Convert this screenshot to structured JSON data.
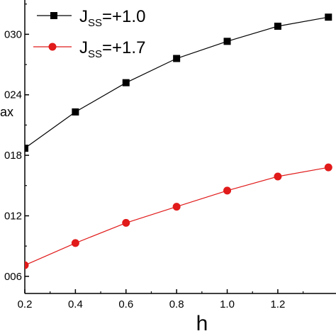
{
  "chart_data": {
    "type": "line",
    "xlabel": "h",
    "ylabel_visible": "ax",
    "x": [
      0.2,
      0.4,
      0.6,
      0.8,
      1.0,
      1.2,
      1.4
    ],
    "x_ticks": [
      "0.2",
      "0.4",
      "0.6",
      "0.8",
      "1.0",
      "1.2"
    ],
    "y_ticks": [
      {
        "value": 0.006,
        "label": "006"
      },
      {
        "value": 0.012,
        "label": "012"
      },
      {
        "value": 0.018,
        "label": "018"
      },
      {
        "value": 0.024,
        "label": "024"
      },
      {
        "value": 0.03,
        "label": "030"
      }
    ],
    "xlim": [
      0.2,
      1.43
    ],
    "ylim": [
      0.0043,
      0.0334
    ],
    "grid": false,
    "legend_position": "top-left",
    "series": [
      {
        "name_main": "J",
        "name_sub": "SS",
        "name_value": "=+1.0",
        "color": "#000000",
        "marker": "square",
        "values": [
          0.0187,
          0.0223,
          0.0252,
          0.0276,
          0.0293,
          0.0308,
          0.0317
        ]
      },
      {
        "name_main": "J",
        "name_sub": "SS",
        "name_value": "=+1.7",
        "color": "#e11a1a",
        "marker": "circle",
        "values": [
          0.0071,
          0.0093,
          0.0113,
          0.0129,
          0.0145,
          0.0159,
          0.0168
        ]
      }
    ]
  }
}
